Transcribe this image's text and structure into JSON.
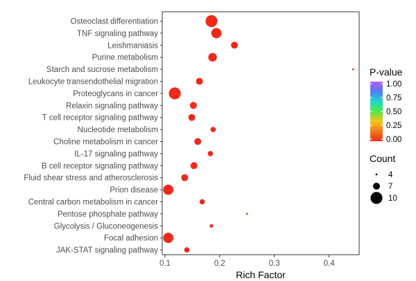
{
  "chart_data": {
    "type": "scatter",
    "xlabel": "Rich Factor",
    "ylabel": "",
    "title": "",
    "xlim": [
      0.095,
      0.455
    ],
    "xticks": [
      0.1,
      0.2,
      0.3,
      0.4
    ],
    "xtick_labels": [
      "0.1",
      "0.2",
      "0.3",
      "0.4"
    ],
    "grid": false,
    "categories": [
      "Osteoclast differentiation",
      "TNF signaling pathway",
      "Leishmaniasis",
      "Purine metabolism",
      "Starch and sucrose metabolism",
      "Leukocyte transendothelial migration",
      "Proteoglycans in cancer",
      "Relaxin signaling pathway",
      "T cell receptor signaling pathway",
      "Nucleotide metabolism",
      "Choline metabolism in cancer",
      "IL-17 signaling pathway",
      "B cell receptor signaling pathway",
      "Fluid shear stress and atherosclerosis",
      "Prion disease",
      "Central carbon metabolism in cancer",
      "Pentose phosphate pathway",
      "Glycolysis / Gluconeogenesis",
      "Focal adhesion",
      "JAK-STAT signaling pathway"
    ],
    "points": [
      {
        "category": "Osteoclast differentiation",
        "rich_factor": 0.185,
        "count": 10,
        "p_value": 0.0
      },
      {
        "category": "TNF signaling pathway",
        "rich_factor": 0.194,
        "count": 9,
        "p_value": 0.0
      },
      {
        "category": "Leishmaniasis",
        "rich_factor": 0.227,
        "count": 7,
        "p_value": 0.0
      },
      {
        "category": "Purine metabolism",
        "rich_factor": 0.187,
        "count": 8,
        "p_value": 0.0
      },
      {
        "category": "Starch and sucrose metabolism",
        "rich_factor": 0.444,
        "count": 4,
        "p_value": 0.0
      },
      {
        "category": "Leukocyte transendothelial migration",
        "rich_factor": 0.163,
        "count": 7,
        "p_value": 0.0
      },
      {
        "category": "Proteoglycans in cancer",
        "rich_factor": 0.118,
        "count": 10,
        "p_value": 0.0
      },
      {
        "category": "Relaxin signaling pathway",
        "rich_factor": 0.152,
        "count": 7,
        "p_value": 0.0
      },
      {
        "category": "T cell receptor signaling pathway",
        "rich_factor": 0.149,
        "count": 7,
        "p_value": 0.0
      },
      {
        "category": "Nucleotide metabolism",
        "rich_factor": 0.188,
        "count": 6,
        "p_value": 0.0
      },
      {
        "category": "Choline metabolism in cancer",
        "rich_factor": 0.16,
        "count": 7,
        "p_value": 0.0
      },
      {
        "category": "IL-17 signaling pathway",
        "rich_factor": 0.183,
        "count": 6,
        "p_value": 0.0
      },
      {
        "category": "B cell receptor signaling pathway",
        "rich_factor": 0.153,
        "count": 7,
        "p_value": 0.0
      },
      {
        "category": "Fluid shear stress and atherosclerosis",
        "rich_factor": 0.136,
        "count": 7,
        "p_value": 0.0
      },
      {
        "category": "Prion disease",
        "rich_factor": 0.106,
        "count": 9,
        "p_value": 0.0
      },
      {
        "category": "Central carbon metabolism in cancer",
        "rich_factor": 0.168,
        "count": 6,
        "p_value": 0.0
      },
      {
        "category": "Pentose phosphate pathway",
        "rich_factor": 0.25,
        "count": 4,
        "p_value": 0.0
      },
      {
        "category": "Glycolysis / Gluconeogenesis",
        "rich_factor": 0.185,
        "count": 5,
        "p_value": 0.0
      },
      {
        "category": "Focal adhesion",
        "rich_factor": 0.106,
        "count": 9,
        "p_value": 0.0
      },
      {
        "category": "JAK-STAT signaling pathway",
        "rich_factor": 0.14,
        "count": 6,
        "p_value": 0.0
      }
    ],
    "color_legend": {
      "title": "P-value",
      "ticks": [
        "1.00",
        "0.75",
        "0.50",
        "0.25",
        "0.00"
      ],
      "colors_top_to_bottom": [
        "#b45af2",
        "#4f7cf5",
        "#20d9c8",
        "#4fe84a",
        "#f5c518",
        "#f07a1a",
        "#ee2a1b"
      ]
    },
    "size_legend": {
      "title": "Count",
      "entries": [
        {
          "label": "4",
          "count": 4
        },
        {
          "label": "7",
          "count": 7
        },
        {
          "label": "10",
          "count": 10
        }
      ]
    },
    "point_color": "#ee2a1b",
    "panel_border_color": "#333333",
    "legend_placement": "right"
  }
}
